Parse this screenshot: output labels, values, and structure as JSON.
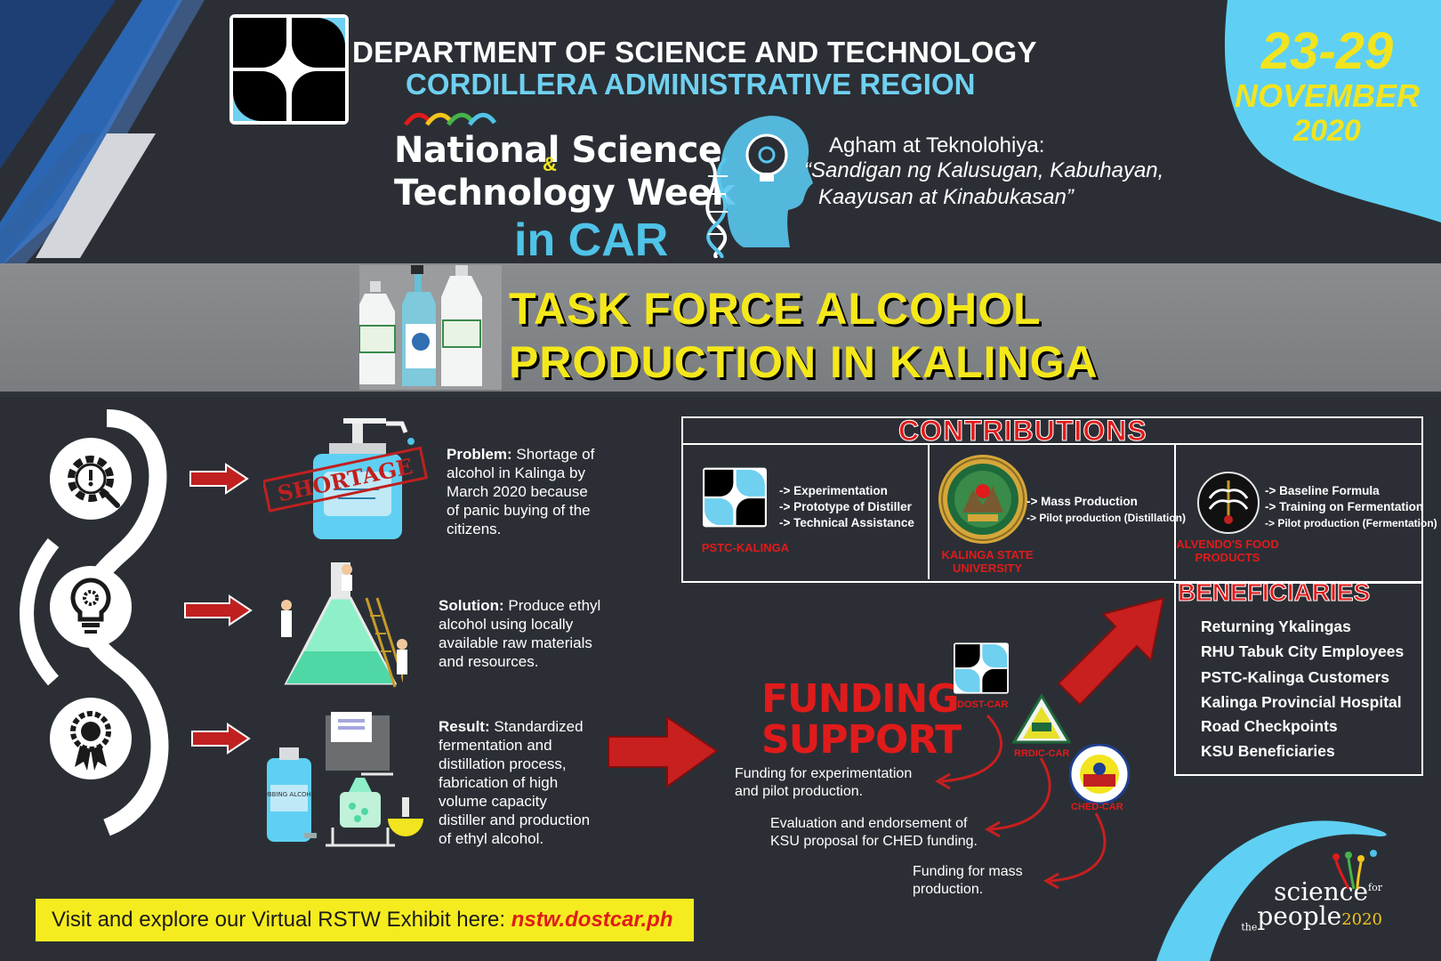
{
  "header": {
    "org_line1": "DEPARTMENT OF SCIENCE AND TECHNOLOGY",
    "org_line2": "CORDILLERA ADMINISTRATIVE REGION",
    "date_days": "23-29",
    "date_month": "NOVEMBER",
    "date_year": "2020"
  },
  "event": {
    "title_line1": "National Science",
    "title_amp": "&",
    "title_line2": "Technology Week",
    "title_line3": "in CAR",
    "tagline_1": "Agham at Teknolohiya:",
    "tagline_2": "“Sandigan ng Kalusugan, Kabuhayan,",
    "tagline_3": "Kaayusan at Kinabukasan”"
  },
  "banner": {
    "title_line1": "TASK FORCE ALCOHOL",
    "title_line2": "PRODUCTION IN KALINGA",
    "shortage_stamp": "SHORTAGE",
    "bottle_label": "RUBBING ALCOHOL"
  },
  "steps": [
    {
      "label": "Problem:",
      "text": " Shortage of alcohol in Kalinga by March 2020 because of panic buying of the citizens."
    },
    {
      "label": "Solution:",
      "text": " Produce ethyl alcohol using locally available raw materials and resources."
    },
    {
      "label": "Result:",
      "text": " Standardized fermentation and distillation process, fabrication of high volume capacity distiller and production of ethyl alcohol."
    }
  ],
  "contributions": {
    "title": "CONTRIBUTIONS",
    "partners": [
      {
        "name": "PSTC-KALINGA",
        "items": [
          "-> Experimentation",
          "-> Prototype of Distiller",
          "-> Technical Assistance"
        ]
      },
      {
        "name": "KALINGA STATE UNIVERSITY",
        "items": [
          "-> Mass Production",
          "-> Pilot production (Distillation)"
        ]
      },
      {
        "name": "ALVENDO'S FOOD PRODUCTS",
        "items": [
          "-> Baseline Formula",
          "-> Training on Fermentation",
          "-> Pilot production (Fermentation)"
        ]
      }
    ]
  },
  "beneficiaries": {
    "title": "BENEFICIARIES",
    "items": [
      "Returning Ykalingas",
      "RHU Tabuk City Employees",
      "PSTC-Kalinga Customers",
      "Kalinga Provincial Hospital",
      "Road Checkpoints",
      "KSU Beneficiaries"
    ]
  },
  "funding": {
    "title_line1": "FUNDING",
    "title_line2": "SUPPORT",
    "sources": [
      {
        "name": "DOST-CAR",
        "note": "Funding for experimentation and pilot production."
      },
      {
        "name": "RRDIC-CAR",
        "note": "Evaluation and endorsement of KSU proposal for CHED funding."
      },
      {
        "name": "CHED-CAR",
        "note": "Funding for mass production."
      }
    ]
  },
  "footer": {
    "visit_text": "Visit and explore our Virtual RSTW Exhibit here: ",
    "visit_url": "nstw.dostcar.ph",
    "brand_science": "science",
    "brand_for": "for",
    "brand_the": "the",
    "brand_people": "people",
    "brand_year": "2020"
  },
  "colors": {
    "background": "#2b2f35",
    "accent_blue": "#4fc3e8",
    "accent_yellow": "#f5e81a",
    "accent_red": "#e01b1b"
  }
}
